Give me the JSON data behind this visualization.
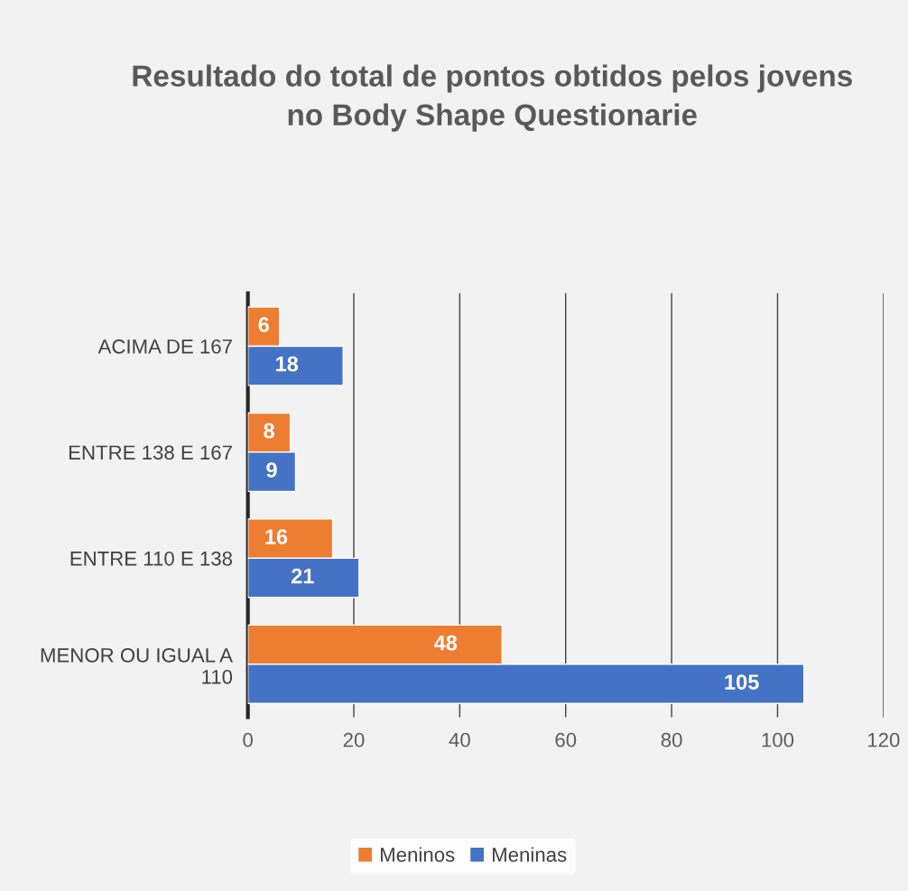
{
  "chart_data": {
    "type": "bar",
    "orientation": "horizontal",
    "title": "Resultado do total de pontos obtidos pelos jovens\nno Body Shape Questionarie",
    "categories": [
      "ACIMA DE 167",
      "ENTRE 138 E 167",
      "ENTRE 110 E 138",
      "MENOR OU IGUAL A\n110"
    ],
    "series": [
      {
        "name": "Meninos",
        "color": "#ed7d31",
        "values": [
          6,
          8,
          16,
          48
        ]
      },
      {
        "name": "Meninas",
        "color": "#4472c4",
        "values": [
          18,
          9,
          21,
          105
        ]
      }
    ],
    "xlim": [
      0,
      120
    ],
    "xticks": [
      0,
      20,
      40,
      60,
      80,
      100,
      120
    ],
    "grid": "x",
    "legend": "bottom",
    "data_labels": true
  }
}
